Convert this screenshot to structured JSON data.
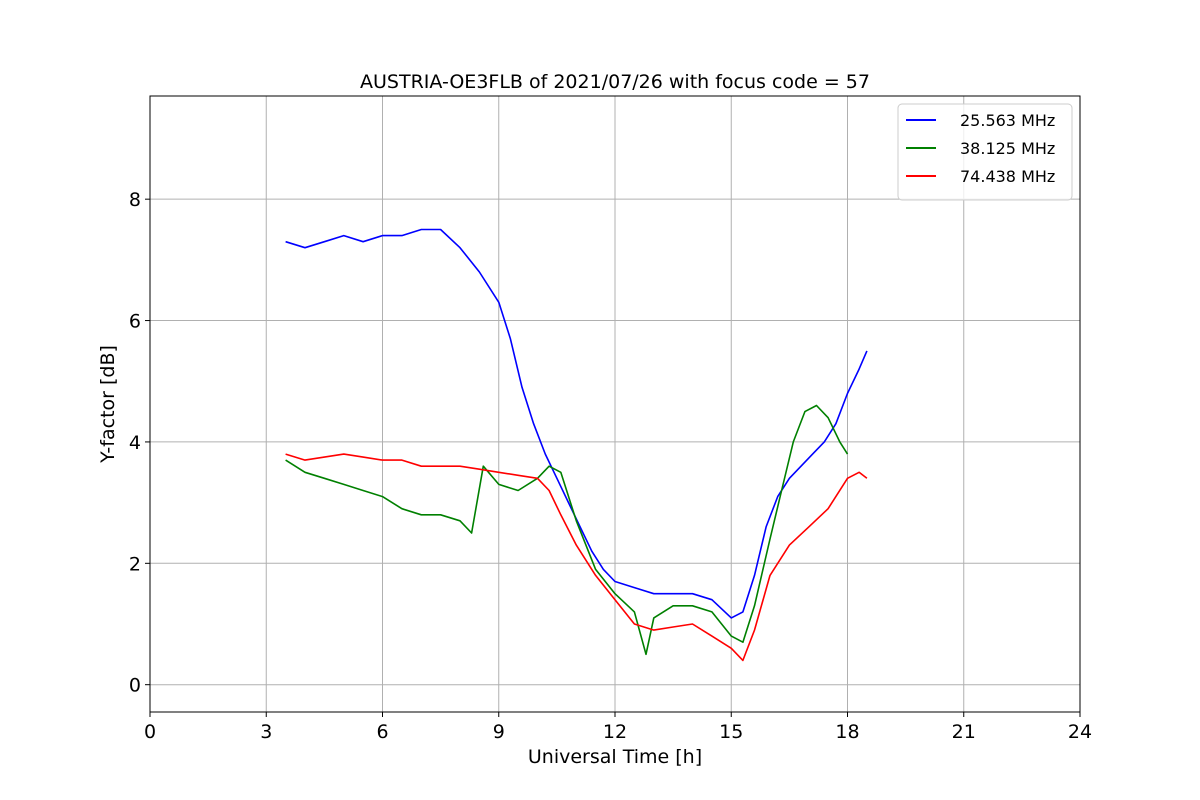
{
  "chart_data": {
    "type": "line",
    "title": "AUSTRIA-OE3FLB of 2021/07/26 with focus code = 57",
    "xlabel": "Universal Time [h]",
    "ylabel": "Y-factor [dB]",
    "xlim": [
      0,
      24
    ],
    "ylim": [
      -0.45,
      9.7
    ],
    "xticks": [
      0,
      3,
      6,
      9,
      12,
      15,
      18,
      21,
      24
    ],
    "yticks": [
      0,
      2,
      4,
      6,
      8
    ],
    "grid": true,
    "legend_position": "top-right",
    "series": [
      {
        "name": "25.563 MHz",
        "color": "#0000ff",
        "x": [
          3.5,
          4.0,
          4.5,
          5.0,
          5.5,
          6.0,
          6.5,
          7.0,
          7.5,
          8.0,
          8.5,
          9.0,
          9.3,
          9.6,
          9.9,
          10.2,
          10.5,
          10.8,
          11.1,
          11.4,
          11.7,
          12.0,
          12.5,
          13.0,
          13.5,
          14.0,
          14.5,
          15.0,
          15.3,
          15.6,
          15.9,
          16.2,
          16.5,
          16.8,
          17.1,
          17.4,
          17.7,
          18.0,
          18.3,
          18.5
        ],
        "y": [
          7.3,
          7.2,
          7.3,
          7.4,
          7.3,
          7.4,
          7.4,
          7.5,
          7.5,
          7.2,
          6.8,
          6.3,
          5.7,
          4.9,
          4.3,
          3.8,
          3.4,
          3.0,
          2.6,
          2.2,
          1.9,
          1.7,
          1.6,
          1.5,
          1.5,
          1.5,
          1.4,
          1.1,
          1.2,
          1.8,
          2.6,
          3.1,
          3.4,
          3.6,
          3.8,
          4.0,
          4.3,
          4.8,
          5.2,
          5.5
        ]
      },
      {
        "name": "38.125 MHz",
        "color": "#008000",
        "x": [
          3.5,
          4.0,
          4.5,
          5.0,
          5.5,
          6.0,
          6.5,
          7.0,
          7.5,
          8.0,
          8.3,
          8.6,
          9.0,
          9.5,
          10.0,
          10.3,
          10.6,
          11.0,
          11.5,
          12.0,
          12.5,
          12.8,
          13.0,
          13.5,
          14.0,
          14.5,
          15.0,
          15.3,
          15.6,
          16.0,
          16.3,
          16.6,
          16.9,
          17.2,
          17.5,
          17.8,
          18.0
        ],
        "y": [
          3.7,
          3.5,
          3.4,
          3.3,
          3.2,
          3.1,
          2.9,
          2.8,
          2.8,
          2.7,
          2.5,
          3.6,
          3.3,
          3.2,
          3.4,
          3.6,
          3.5,
          2.7,
          1.9,
          1.5,
          1.2,
          0.5,
          1.1,
          1.3,
          1.3,
          1.2,
          0.8,
          0.7,
          1.3,
          2.4,
          3.2,
          4.0,
          4.5,
          4.6,
          4.4,
          4.0,
          3.8
        ]
      },
      {
        "name": "74.438 MHz",
        "color": "#ff0000",
        "x": [
          3.5,
          4.0,
          4.5,
          5.0,
          5.5,
          6.0,
          6.5,
          7.0,
          7.5,
          8.0,
          8.5,
          9.0,
          9.5,
          10.0,
          10.3,
          10.6,
          11.0,
          11.5,
          12.0,
          12.5,
          13.0,
          13.5,
          14.0,
          14.5,
          15.0,
          15.3,
          15.6,
          16.0,
          16.5,
          17.0,
          17.5,
          18.0,
          18.3,
          18.5
        ],
        "y": [
          3.8,
          3.7,
          3.75,
          3.8,
          3.75,
          3.7,
          3.7,
          3.6,
          3.6,
          3.6,
          3.55,
          3.5,
          3.45,
          3.4,
          3.2,
          2.8,
          2.3,
          1.8,
          1.4,
          1.0,
          0.9,
          0.95,
          1.0,
          0.8,
          0.6,
          0.4,
          0.9,
          1.8,
          2.3,
          2.6,
          2.9,
          3.4,
          3.5,
          3.4
        ]
      }
    ]
  }
}
